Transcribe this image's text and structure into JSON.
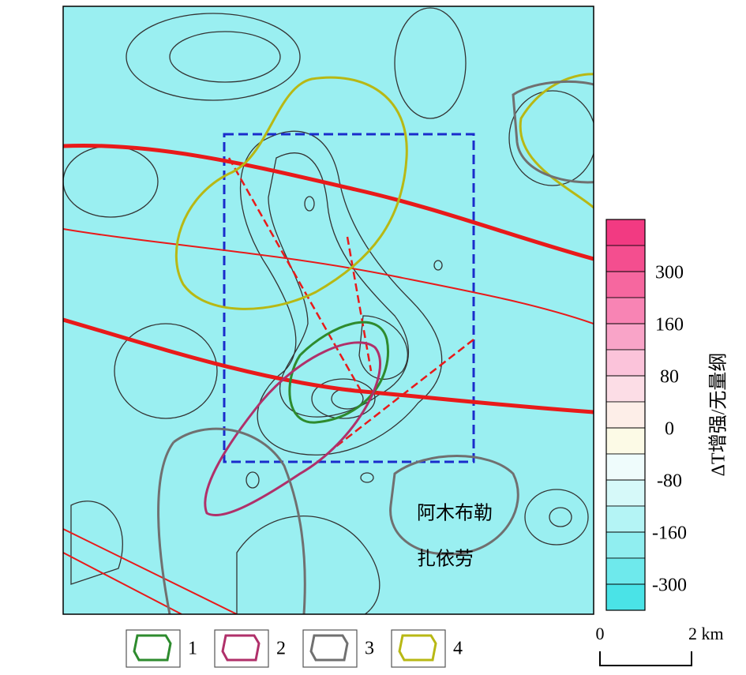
{
  "map": {
    "places": [
      "阿木布勒",
      "扎依劳"
    ],
    "colorbar": {
      "title": "ΔT增强/无量纲",
      "ticks": [
        300,
        160,
        80,
        0,
        -80,
        -160,
        -300
      ],
      "colors": [
        "#f23a82",
        "#f44e8f",
        "#f6679f",
        "#f884b4",
        "#f9a4c8",
        "#fbc3da",
        "#fcdde6",
        "#fdeee8",
        "#fcfae6",
        "#effcfc",
        "#d6f9f9",
        "#b4f4f5",
        "#90eef0",
        "#6ee9ec",
        "#4ae3e7"
      ]
    },
    "legend": [
      {
        "label": "1",
        "color": "#2e8b2e"
      },
      {
        "label": "2",
        "color": "#b0306a"
      },
      {
        "label": "3",
        "color": "#707070"
      },
      {
        "label": "4",
        "color": "#b8b814"
      }
    ],
    "scale": {
      "start": "0",
      "end": "2 km"
    }
  }
}
